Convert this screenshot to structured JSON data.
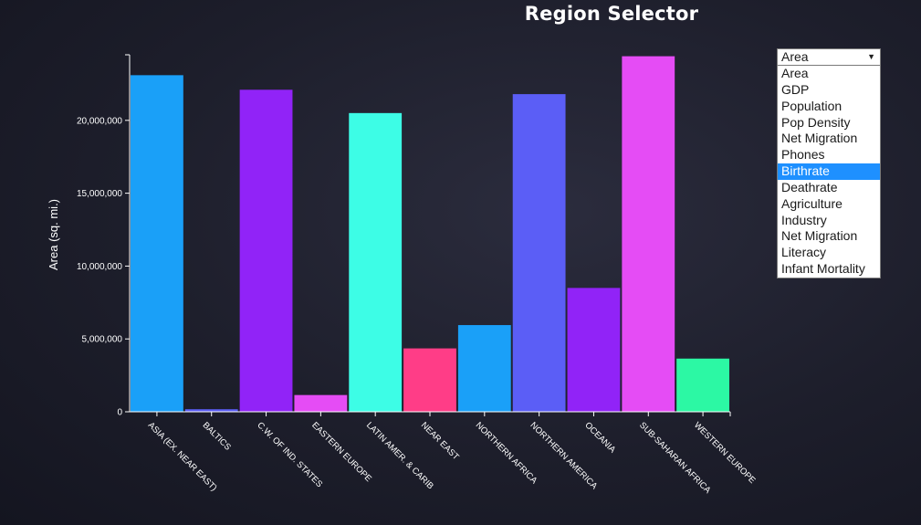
{
  "page": {
    "title": "Region Selector"
  },
  "selector": {
    "selected": "Area",
    "highlighted": "Birthrate",
    "options": [
      "Area",
      "GDP",
      "Population",
      "Pop Density",
      "Net Migration",
      "Phones",
      "Birthrate",
      "Deathrate",
      "Agriculture",
      "Industry",
      "Net Migration",
      "Literacy",
      "Infant Mortality"
    ]
  },
  "chart_data": {
    "type": "bar",
    "title": "",
    "xlabel": "",
    "ylabel": "Area (sq. mi.)",
    "ylim": [
      0,
      24500000
    ],
    "yticks": [
      0,
      5000000,
      10000000,
      15000000,
      20000000
    ],
    "ytick_labels": [
      "0",
      "5,000,000",
      "10,000,000",
      "15,000,000",
      "20,000,000"
    ],
    "grid": false,
    "categories": [
      "ASIA (EX. NEAR EAST)",
      "BALTICS",
      "C.W. OF IND. STATES",
      "EASTERN EUROPE",
      "LATIN AMER. & CARIB",
      "NEAR EAST",
      "NORTHERN AFRICA",
      "NORTHERN AMERICA",
      "OCEANIA",
      "SUB-SAHARAN AFRICA",
      "WESTERN EUROPE"
    ],
    "values": [
      23100000,
      175000,
      22100000,
      1150000,
      20500000,
      4350000,
      5950000,
      21800000,
      8500000,
      24400000,
      3650000
    ],
    "colors": [
      "#1aa0f8",
      "#5b5ef6",
      "#9123f7",
      "#e54cf5",
      "#3dfde6",
      "#ff3d87",
      "#1aa0f8",
      "#5b5ef6",
      "#9123f7",
      "#e54cf5",
      "#2cf8a4"
    ]
  }
}
